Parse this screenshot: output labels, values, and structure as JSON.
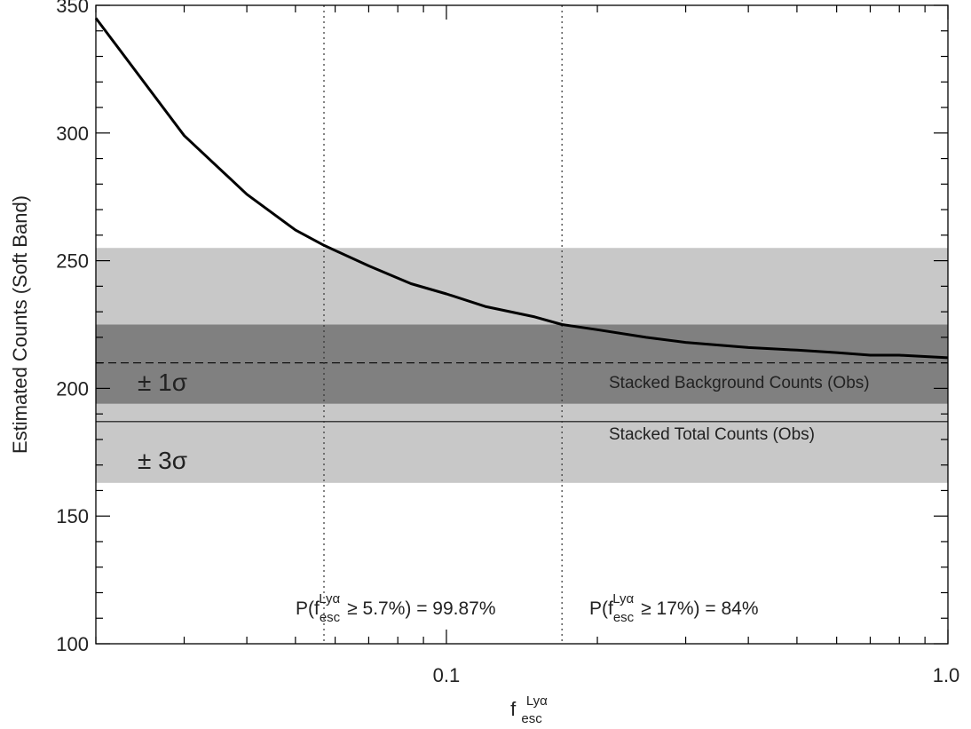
{
  "chart_data": {
    "type": "line",
    "xscale": "log",
    "xlim": [
      0.02,
      1.0
    ],
    "ylim": [
      100,
      350
    ],
    "xlabel": {
      "base": "f",
      "sup": "Lyα",
      "sub": "esc"
    },
    "ylabel": "Estimated Counts (Soft Band)",
    "x_ticks": [
      {
        "value": 0.1,
        "label": "0.1"
      },
      {
        "value": 1.0,
        "label": "1.0"
      }
    ],
    "y_ticks": [
      {
        "value": 100,
        "label": "100"
      },
      {
        "value": 150,
        "label": "150"
      },
      {
        "value": 200,
        "label": "200"
      },
      {
        "value": 250,
        "label": "250"
      },
      {
        "value": 300,
        "label": "300"
      },
      {
        "value": 350,
        "label": "350"
      }
    ],
    "series": [
      {
        "x": [
          0.02,
          0.03,
          0.04,
          0.05,
          0.057,
          0.07,
          0.085,
          0.1,
          0.12,
          0.15,
          0.17,
          0.2,
          0.25,
          0.3,
          0.4,
          0.5,
          0.6,
          0.7,
          0.8,
          1.0
        ],
        "values": [
          345,
          299,
          276,
          262,
          256,
          248,
          241,
          237,
          232,
          228,
          225,
          223,
          220,
          218,
          216,
          215,
          214,
          213,
          213,
          212
        ]
      }
    ],
    "bands": [
      {
        "label": "± 3σ",
        "y_range": [
          163,
          255
        ],
        "color": "#c8c8c8"
      },
      {
        "label": "± 1σ",
        "y_range": [
          194,
          225
        ],
        "color": "#808080"
      }
    ],
    "hlines": [
      {
        "label": "Stacked Background Counts (Obs)",
        "y": 210,
        "style": "dashed"
      },
      {
        "label": "Stacked Total Counts (Obs)",
        "y": 187,
        "style": "solid"
      }
    ],
    "vlines": [
      {
        "x": 0.057,
        "style": "dotted",
        "annotation": {
          "prefix": "P(f",
          "sup": "Lyα",
          "sub": "esc",
          "rest": "≥ 5.7%) = 99.87%"
        }
      },
      {
        "x": 0.17,
        "style": "dotted",
        "annotation": {
          "prefix": "P(f",
          "sup": "Lyα",
          "sub": "esc",
          "rest": "≥ 17%) = 84%"
        }
      }
    ]
  }
}
